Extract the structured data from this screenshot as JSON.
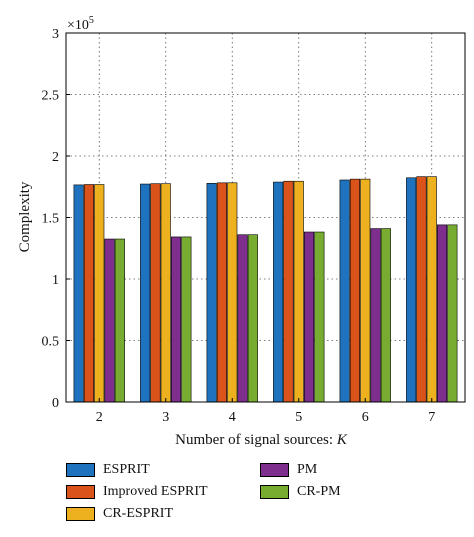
{
  "chart_data": {
    "type": "bar",
    "xlabel": "Number of signal sources: K",
    "ylabel": "Complexity",
    "y_multiplier_label": "×10",
    "y_multiplier_exponent": "5",
    "categories": [
      "2",
      "3",
      "4",
      "5",
      "6",
      "7"
    ],
    "ylim": [
      0,
      3
    ],
    "yticks": [
      "0",
      "0.5",
      "1",
      "1.5",
      "2",
      "2.5",
      "3"
    ],
    "grid": true,
    "legend_position": "bottom",
    "series": [
      {
        "name": "ESPRIT",
        "color": "#1f72bd",
        "values": [
          1.765,
          1.772,
          1.778,
          1.788,
          1.805,
          1.823
        ]
      },
      {
        "name": "Improved ESPRIT",
        "color": "#d9531a",
        "values": [
          1.768,
          1.775,
          1.782,
          1.795,
          1.812,
          1.832
        ]
      },
      {
        "name": "CR-ESPRIT",
        "color": "#edb120",
        "values": [
          1.768,
          1.775,
          1.782,
          1.795,
          1.812,
          1.832
        ]
      },
      {
        "name": "PM",
        "color": "#7e2f8e",
        "values": [
          1.325,
          1.342,
          1.36,
          1.382,
          1.41,
          1.44
        ]
      },
      {
        "name": "CR-PM",
        "color": "#77ac30",
        "values": [
          1.325,
          1.342,
          1.36,
          1.382,
          1.41,
          1.44
        ]
      }
    ]
  }
}
